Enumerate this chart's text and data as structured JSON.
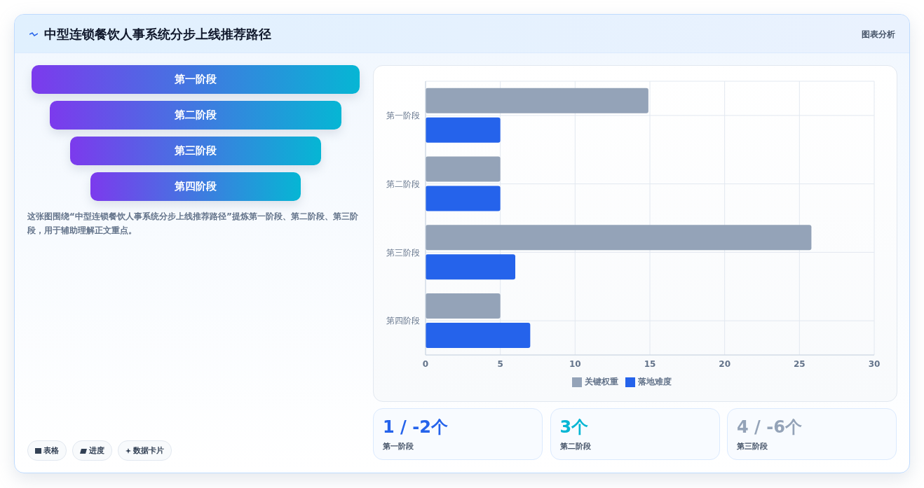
{
  "chart_data": [
    {
      "type": "other",
      "title": "中型连锁餐饮人事系统分步上线推荐路径",
      "subtitle": "图表分析",
      "categories": [
        "第一阶段",
        "第二阶段",
        "第三阶段",
        "第四阶段"
      ],
      "annotations": [
        "这张图围绕“中型连锁餐饮人事系统分步上线推荐路径”提炼第一阶段、第二阶段、第三阶段，用于辅助理解正文重点。",
        "表格",
        "进度",
        "数据卡片"
      ]
    },
    {
      "type": "bar",
      "orientation": "horizontal",
      "categories": [
        "第一阶段",
        "第二阶段",
        "第三阶段",
        "第四阶段"
      ],
      "series": [
        {
          "name": "关键权重",
          "color": "#94a3b8",
          "values": [
            14.9,
            5,
            25.8,
            5
          ]
        },
        {
          "name": "落地难度",
          "color": "#2563eb",
          "values": [
            5,
            5,
            6,
            7
          ]
        }
      ],
      "xlim": [
        0,
        30
      ],
      "xticks": [
        0,
        5,
        10,
        15,
        20,
        25,
        30
      ],
      "grid": true,
      "legend": "bottom"
    },
    {
      "type": "other",
      "categories": [
        "第一阶段",
        "第二阶段",
        "第三阶段"
      ],
      "annotations": [
        "1 / -2个",
        "3个",
        "4 / -6个"
      ]
    }
  ]
}
